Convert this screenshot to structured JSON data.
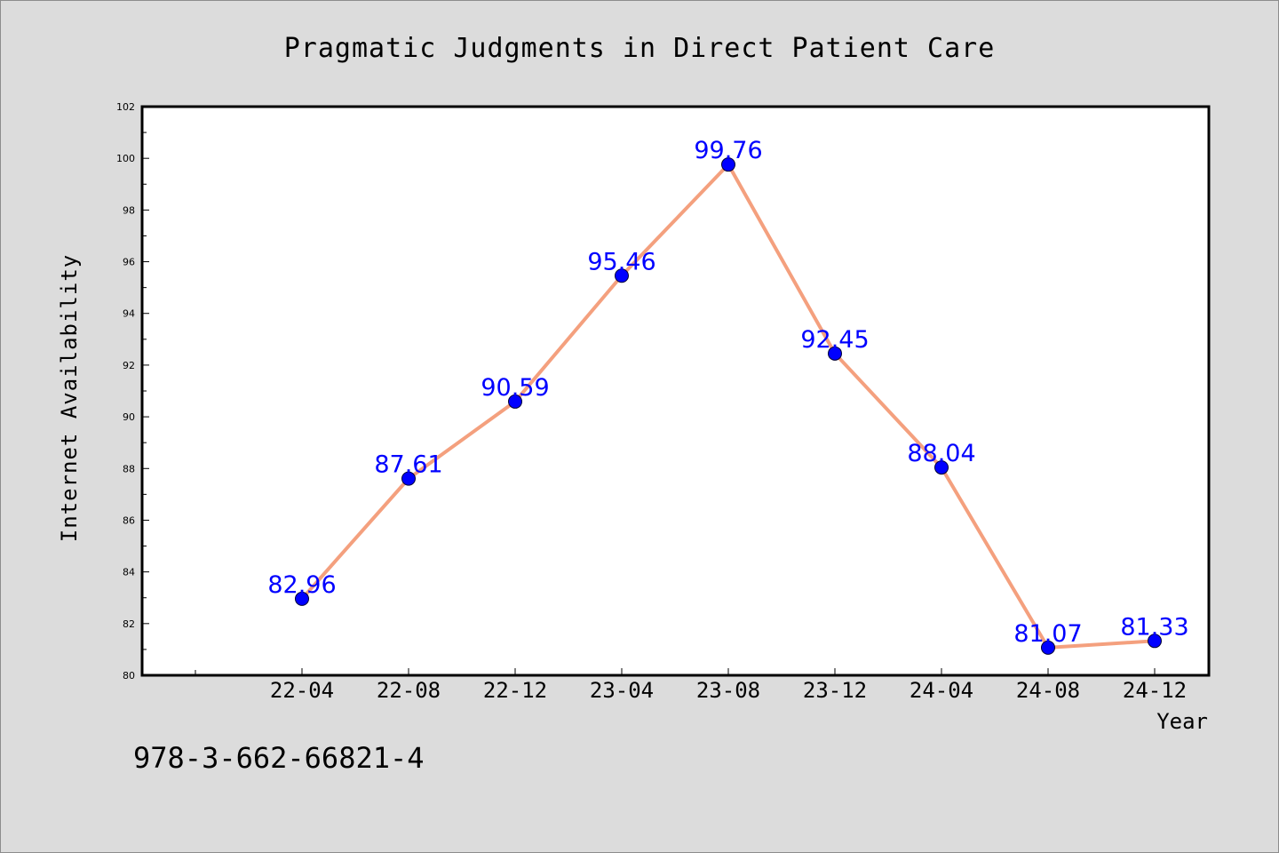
{
  "chart_data": {
    "type": "line",
    "title": "Pragmatic Judgments in Direct Patient Care",
    "xlabel": "Year",
    "ylabel": "Internet Availability",
    "categories": [
      "22-04",
      "22-08",
      "22-12",
      "23-04",
      "23-08",
      "23-12",
      "24-04",
      "24-08",
      "24-12"
    ],
    "series": [
      {
        "values": [
          82.96,
          87.61,
          90.59,
          95.46,
          99.76,
          92.45,
          88.04,
          81.07,
          81.33
        ],
        "labels": [
          "82.96",
          "87.61",
          "90.59",
          "95.46",
          "99.76",
          "92.45",
          "88.04",
          "81.07",
          "81.33"
        ]
      }
    ],
    "ylim": [
      80,
      102
    ],
    "yticks": [
      "80",
      "82",
      "84",
      "86",
      "88",
      "90",
      "92",
      "94",
      "96",
      "98",
      "100",
      "102"
    ],
    "grid": false,
    "legend": "none",
    "colors": {
      "line": "#f4a07e",
      "marker": "#0000ff",
      "label": "#0000ff",
      "plot_bg": "#ffffff",
      "background": "#dcdcdc"
    }
  },
  "footer_text": "978-3-662-66821-4"
}
